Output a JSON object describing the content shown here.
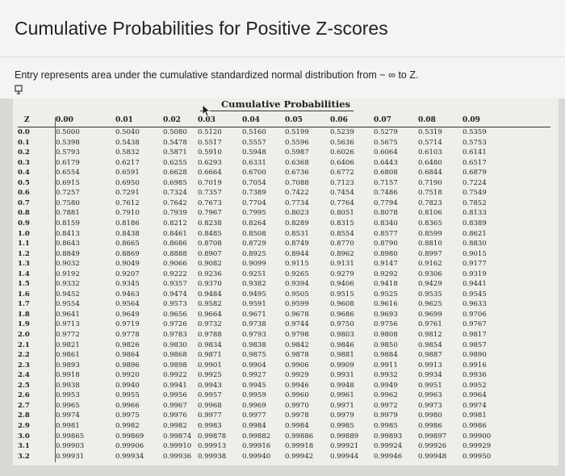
{
  "page": {
    "title": "Cumulative Probabilities for Positive Z-scores",
    "subtitle": "Entry represents area under the cumulative standardized normal distribution from − ∞ to Z."
  },
  "table": {
    "title": "Cumulative Probabilities",
    "corner": "Z",
    "columns": [
      "0.00",
      "0.01",
      "0.02",
      "0.03",
      "0.04",
      "0.05",
      "0.06",
      "0.07",
      "0.08",
      "0.09"
    ],
    "rows": [
      {
        "z": "0.0",
        "values": [
          "0.5000",
          "0.5040",
          "0.5080",
          "0.5120",
          "0.5160",
          "0.5199",
          "0.5239",
          "0.5279",
          "0.5319",
          "0.5359"
        ]
      },
      {
        "z": "0.1",
        "values": [
          "0.5398",
          "0.5438",
          "0.5478",
          "0.5517",
          "0.5557",
          "0.5596",
          "0.5636",
          "0.5675",
          "0.5714",
          "0.5753"
        ]
      },
      {
        "z": "0.2",
        "values": [
          "0.5793",
          "0.5832",
          "0.5871",
          "0.5910",
          "0.5948",
          "0.5987",
          "0.6026",
          "0.6064",
          "0.6103",
          "0.6141"
        ]
      },
      {
        "z": "0.3",
        "values": [
          "0.6179",
          "0.6217",
          "0.6255",
          "0.6293",
          "0.6331",
          "0.6368",
          "0.6406",
          "0.6443",
          "0.6480",
          "0.6517"
        ]
      },
      {
        "z": "0.4",
        "values": [
          "0.6554",
          "0.6591",
          "0.6628",
          "0.6664",
          "0.6700",
          "0.6736",
          "0.6772",
          "0.6808",
          "0.6844",
          "0.6879"
        ]
      },
      {
        "z": "0.5",
        "values": [
          "0.6915",
          "0.6950",
          "0.6985",
          "0.7019",
          "0.7054",
          "0.7088",
          "0.7123",
          "0.7157",
          "0.7190",
          "0.7224"
        ]
      },
      {
        "z": "0.6",
        "values": [
          "0.7257",
          "0.7291",
          "0.7324",
          "0.7357",
          "0.7389",
          "0.7422",
          "0.7454",
          "0.7486",
          "0.7518",
          "0.7549"
        ]
      },
      {
        "z": "0.7",
        "values": [
          "0.7580",
          "0.7612",
          "0.7642",
          "0.7673",
          "0.7704",
          "0.7734",
          "0.7764",
          "0.7794",
          "0.7823",
          "0.7852"
        ]
      },
      {
        "z": "0.8",
        "values": [
          "0.7881",
          "0.7910",
          "0.7939",
          "0.7967",
          "0.7995",
          "0.8023",
          "0.8051",
          "0.8078",
          "0.8106",
          "0.8133"
        ]
      },
      {
        "z": "0.9",
        "values": [
          "0.8159",
          "0.8186",
          "0.8212",
          "0.8238",
          "0.8264",
          "0.8289",
          "0.8315",
          "0.8340",
          "0.8365",
          "0.8389"
        ]
      },
      {
        "z": "1.0",
        "values": [
          "0.8413",
          "0.8438",
          "0.8461",
          "0.8485",
          "0.8508",
          "0.8531",
          "0.8554",
          "0.8577",
          "0.8599",
          "0.8621"
        ]
      },
      {
        "z": "1.1",
        "values": [
          "0.8643",
          "0.8665",
          "0.8686",
          "0.8708",
          "0.8729",
          "0.8749",
          "0.8770",
          "0.8790",
          "0.8810",
          "0.8830"
        ]
      },
      {
        "z": "1.2",
        "values": [
          "0.8849",
          "0.8869",
          "0.8888",
          "0.8907",
          "0.8925",
          "0.8944",
          "0.8962",
          "0.8980",
          "0.8997",
          "0.9015"
        ]
      },
      {
        "z": "1.3",
        "values": [
          "0.9032",
          "0.9049",
          "0.9066",
          "0.9082",
          "0.9099",
          "0.9115",
          "0.9131",
          "0.9147",
          "0.9162",
          "0.9177"
        ]
      },
      {
        "z": "1.4",
        "values": [
          "0.9192",
          "0.9207",
          "0.9222",
          "0.9236",
          "0.9251",
          "0.9265",
          "0.9279",
          "0.9292",
          "0.9306",
          "0.9319"
        ]
      },
      {
        "z": "1.5",
        "values": [
          "0.9332",
          "0.9345",
          "0.9357",
          "0.9370",
          "0.9382",
          "0.9394",
          "0.9406",
          "0.9418",
          "0.9429",
          "0.9441"
        ]
      },
      {
        "z": "1.6",
        "values": [
          "0.9452",
          "0.9463",
          "0.9474",
          "0.9484",
          "0.9495",
          "0.9505",
          "0.9515",
          "0.9525",
          "0.9535",
          "0.9545"
        ]
      },
      {
        "z": "1.7",
        "values": [
          "0.9554",
          "0.9564",
          "0.9573",
          "0.9582",
          "0.9591",
          "0.9599",
          "0.9608",
          "0.9616",
          "0.9625",
          "0.9633"
        ]
      },
      {
        "z": "1.8",
        "values": [
          "0.9641",
          "0.9649",
          "0.9656",
          "0.9664",
          "0.9671",
          "0.9678",
          "0.9686",
          "0.9693",
          "0.9699",
          "0.9706"
        ]
      },
      {
        "z": "1.9",
        "values": [
          "0.9713",
          "0.9719",
          "0.9726",
          "0.9732",
          "0.9738",
          "0.9744",
          "0.9750",
          "0.9756",
          "0.9761",
          "0.9767"
        ]
      },
      {
        "z": "2.0",
        "values": [
          "0.9772",
          "0.9778",
          "0.9783",
          "0.9788",
          "0.9793",
          "0.9798",
          "0.9803",
          "0.9808",
          "0.9812",
          "0.9817"
        ]
      },
      {
        "z": "2.1",
        "values": [
          "0.9821",
          "0.9826",
          "0.9830",
          "0.9834",
          "0.9838",
          "0.9842",
          "0.9846",
          "0.9850",
          "0.9854",
          "0.9857"
        ]
      },
      {
        "z": "2.2",
        "values": [
          "0.9861",
          "0.9864",
          "0.9868",
          "0.9871",
          "0.9875",
          "0.9878",
          "0.9881",
          "0.9884",
          "0.9887",
          "0.9890"
        ]
      },
      {
        "z": "2.3",
        "values": [
          "0.9893",
          "0.9896",
          "0.9898",
          "0.9901",
          "0.9904",
          "0.9906",
          "0.9909",
          "0.9911",
          "0.9913",
          "0.9916"
        ]
      },
      {
        "z": "2.4",
        "values": [
          "0.9918",
          "0.9920",
          "0.9922",
          "0.9925",
          "0.9927",
          "0.9929",
          "0.9931",
          "0.9932",
          "0.9934",
          "0.9936"
        ]
      },
      {
        "z": "2.5",
        "values": [
          "0.9938",
          "0.9940",
          "0.9941",
          "0.9943",
          "0.9945",
          "0.9946",
          "0.9948",
          "0.9949",
          "0.9951",
          "0.9952"
        ]
      },
      {
        "z": "2.6",
        "values": [
          "0.9953",
          "0.9955",
          "0.9956",
          "0.9957",
          "0.9959",
          "0.9960",
          "0.9961",
          "0.9962",
          "0.9963",
          "0.9964"
        ]
      },
      {
        "z": "2.7",
        "values": [
          "0.9965",
          "0.9966",
          "0.9967",
          "0.9968",
          "0.9969",
          "0.9970",
          "0.9971",
          "0.9972",
          "0.9973",
          "0.9974"
        ]
      },
      {
        "z": "2.8",
        "values": [
          "0.9974",
          "0.9975",
          "0.9976",
          "0.9977",
          "0.9977",
          "0.9978",
          "0.9979",
          "0.9979",
          "0.9980",
          "0.9981"
        ]
      },
      {
        "z": "2.9",
        "values": [
          "0.9981",
          "0.9982",
          "0.9982",
          "0.9983",
          "0.9984",
          "0.9984",
          "0.9985",
          "0.9985",
          "0.9986",
          "0.9986"
        ]
      },
      {
        "z": "3.0",
        "values": [
          "0.99865",
          "0.99869",
          "0.99874",
          "0.99878",
          "0.99882",
          "0.99886",
          "0.99889",
          "0.99893",
          "0.99897",
          "0.99900"
        ]
      },
      {
        "z": "3.1",
        "values": [
          "0.99903",
          "0.99906",
          "0.99910",
          "0.99913",
          "0.99916",
          "0.99918",
          "0.99921",
          "0.99924",
          "0.99926",
          "0.99929"
        ]
      },
      {
        "z": "3.2",
        "values": [
          "0.99931",
          "0.99934",
          "0.99936",
          "0.99938",
          "0.99940",
          "0.99942",
          "0.99944",
          "0.99946",
          "0.99948",
          "0.99950"
        ]
      }
    ]
  },
  "icons": {
    "pin": "pin-icon",
    "cursor": "mouse-cursor-icon"
  }
}
